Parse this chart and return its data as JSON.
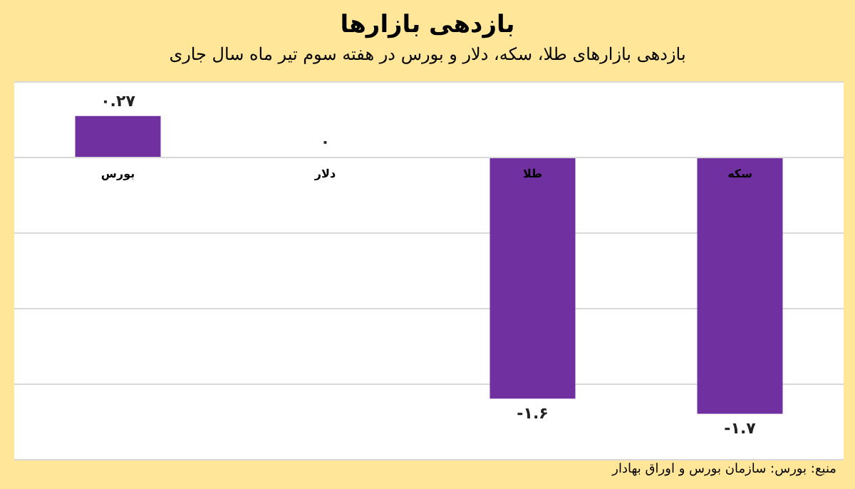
{
  "chart_data": {
    "type": "bar",
    "title": "بازدهی بازارها",
    "subtitle": "بازدهی بازارهای طلا، سکه، دلار و بورس در هفته سوم تیر ماه سال جاری",
    "categories": [
      "بورس",
      "دلار",
      "طلا",
      "سکه"
    ],
    "values": [
      0.27,
      0,
      -1.6,
      -1.7
    ],
    "value_labels": [
      "۰.۲۷",
      "۰",
      "-۱.۶",
      "-۱.۷"
    ],
    "color": "#7030a0",
    "ylim": [
      -2,
      0.5
    ],
    "yticks": [
      {
        "value": -2,
        "label": null
      },
      {
        "value": -1.5,
        "label": null
      },
      {
        "value": -1,
        "label": null
      },
      {
        "value": -0.5,
        "label": null
      },
      {
        "value": 0,
        "label": null
      },
      {
        "value": 0.5,
        "label": null
      }
    ],
    "tick_labels": "x",
    "grid": "y",
    "annotations": [
      "منبع: بورس: سازمان بورس و اوراق بهادار"
    ]
  }
}
